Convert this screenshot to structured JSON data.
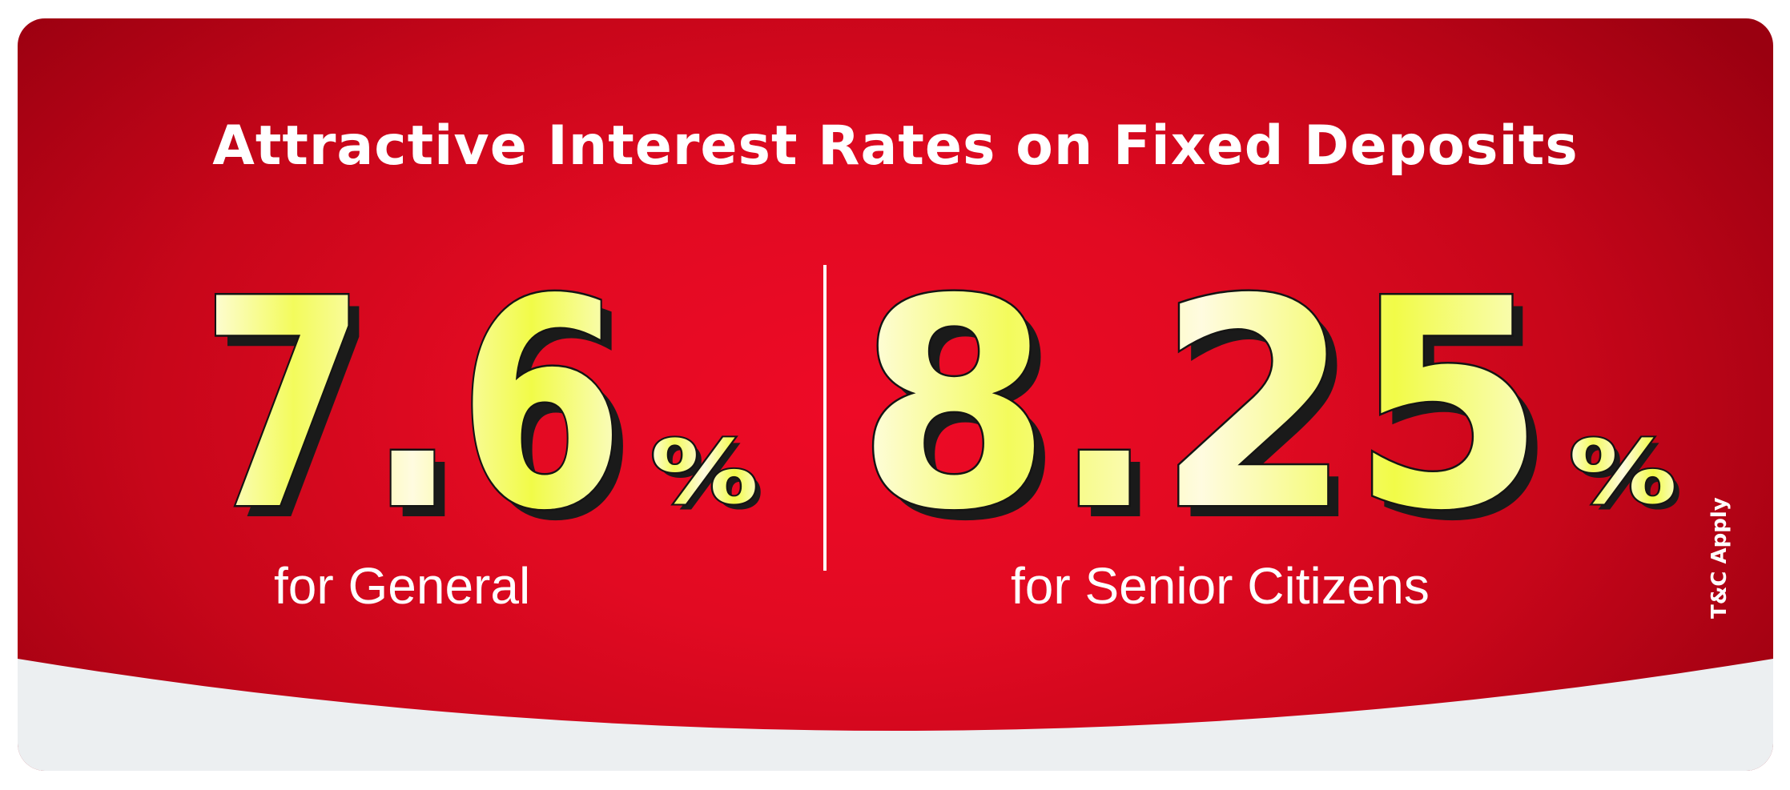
{
  "banner": {
    "headline": "Attractive Interest Rates on Fixed Deposits",
    "general": {
      "rate": "7.6",
      "percent_sign": "%",
      "label": "for General"
    },
    "senior": {
      "rate": "8.25",
      "percent_sign": "%",
      "label": "for Senior Citizens"
    },
    "disclaimer": "T&C Apply"
  },
  "colors": {
    "background_center": "#ee0a26",
    "background_edge": "#9a0010",
    "bottom_band": "#eceff1",
    "number_fill_light": "#fffde6",
    "number_fill_accent": "#f1fb48",
    "text": "#ffffff"
  }
}
